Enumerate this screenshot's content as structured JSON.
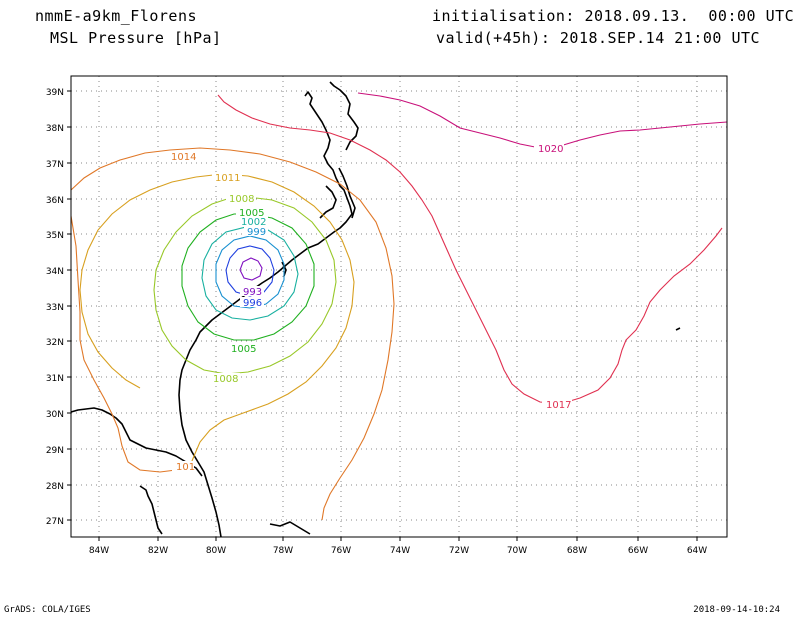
{
  "header": {
    "model_title": "nmmE-a9km_Florens",
    "variable": "MSL Pressure [hPa]",
    "initialisation": "initialisation: 2018.09.13.  00:00 UTC",
    "valid": "valid(+45h): 2018.SEP.14 21:00 UTC"
  },
  "footer": {
    "left": "GrADS: COLA/IGES",
    "right": "2018-09-14-10:24"
  },
  "map": {
    "lon_labels": [
      "84W",
      "82W",
      "80W",
      "78W",
      "76W",
      "74W",
      "72W",
      "70W",
      "68W",
      "66W",
      "64W"
    ],
    "lat_labels": [
      "39N",
      "38N",
      "37N",
      "36N",
      "35N",
      "34N",
      "33N",
      "32N",
      "31N",
      "30N",
      "29N",
      "28N",
      "27N"
    ],
    "contours": [
      {
        "label": "1020",
        "color": "#c8107a"
      },
      {
        "label": "1017",
        "color": "#e03050"
      },
      {
        "label": "1014",
        "color": "#e07828"
      },
      {
        "label": "1011",
        "color": "#d8a020"
      },
      {
        "label": "1008",
        "color": "#98c828"
      },
      {
        "label": "1005",
        "color": "#20b020"
      },
      {
        "label": "1002",
        "color": "#18b0a0"
      },
      {
        "label": "999",
        "color": "#1890d0"
      },
      {
        "label": "996",
        "color": "#2040e0"
      },
      {
        "label": "993",
        "color": "#8010c0"
      }
    ],
    "low_center_label": "993"
  }
}
